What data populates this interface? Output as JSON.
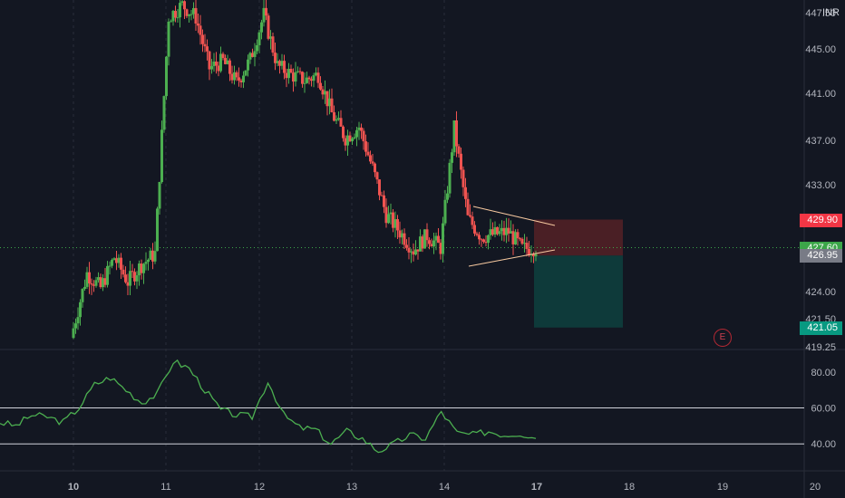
{
  "symbol_currency": "INR",
  "colors": {
    "background": "#131722",
    "grid": "#2a2e39",
    "candle_up": "#26a69a",
    "candle_up_bright": "#4caf50",
    "candle_down": "#ef5350",
    "indicator_line": "#4caf50",
    "triangle_lines": "#f7c9a0",
    "stop_zone": "#4a1f25",
    "target_zone": "#0e3a3a",
    "current_price_badge": "#3ca649",
    "stop_badge": "#f23645",
    "target_badge": "#089981",
    "entry_badge": "#787b86"
  },
  "price_axis": {
    "ticks": [
      "447.50",
      "445.00",
      "441.00",
      "437.00",
      "433.00",
      "424.00",
      "421.50",
      "419.25"
    ],
    "range": [
      419.25,
      447.9
    ]
  },
  "price_badges": {
    "stop": "429.90",
    "current": "427.60",
    "entry": "426.95",
    "target": "421.05"
  },
  "indicator_axis": {
    "ticks": [
      "80.00",
      "60.00",
      "40.00"
    ],
    "levels": [
      60,
      40
    ],
    "range": [
      25,
      92
    ]
  },
  "time_axis": {
    "labels": [
      "10",
      "11",
      "12",
      "13",
      "14",
      "17",
      "18",
      "19",
      "20"
    ],
    "bold": [
      "10",
      "17"
    ]
  },
  "event_marker": {
    "label": "E"
  },
  "chart_data": {
    "type": "candlestick",
    "series": [
      {
        "name": "price",
        "values": [
          421.0,
          425.5,
          424.3,
          426.8,
          424.8,
          426.2,
          427.1,
          446.5,
          447.5,
          446.5,
          442.3,
          442.9,
          441.1,
          443.0,
          446.7,
          442.5,
          441.8,
          441.3,
          441.8,
          438.6,
          436.6,
          437.5,
          434.1,
          430.3,
          428.9,
          427.4,
          428.6,
          427.6,
          437.4,
          430.0,
          428.5,
          428.7,
          428.9,
          427.5,
          427.6
        ]
      },
      {
        "name": "indicator",
        "values": [
          52,
          50,
          56,
          55,
          52,
          60,
          73,
          77,
          70,
          63,
          68,
          86,
          82,
          70,
          59,
          56,
          55,
          75,
          56,
          49,
          48,
          40,
          47,
          43,
          36,
          40,
          45,
          43,
          58,
          46,
          45,
          47,
          45,
          46,
          43
        ]
      }
    ],
    "trade_setup": {
      "entry": 426.95,
      "stop": 429.9,
      "target": 421.05
    },
    "pattern": "symmetrical triangle",
    "grid": true
  }
}
